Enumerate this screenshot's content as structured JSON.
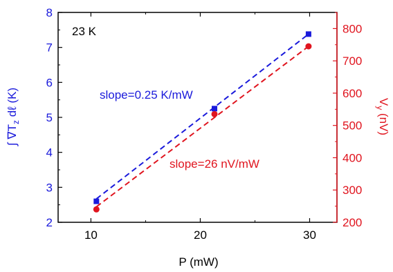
{
  "chart_data": {
    "type": "scatter",
    "annotation_temperature": "23 K",
    "x_axis": {
      "label": "P (mW)",
      "range": [
        7,
        32.5
      ],
      "ticks": [
        10,
        20,
        30
      ],
      "tick_labels": [
        "10",
        "20",
        "30"
      ]
    },
    "y_left_axis": {
      "label_prefix": "∫ ∇T",
      "label_sub": "z",
      "label_suffix": " dℓ (K)",
      "range": [
        2,
        8
      ],
      "ticks": [
        2,
        3,
        4,
        5,
        6,
        7,
        8
      ],
      "tick_labels": [
        "2",
        "3",
        "4",
        "5",
        "6",
        "7",
        "8"
      ],
      "color": "#1a1adb"
    },
    "y_right_axis": {
      "label_prefix": "V",
      "label_sub": "y",
      "label_suffix": " (nV)",
      "range": [
        200,
        850
      ],
      "ticks": [
        200,
        300,
        400,
        500,
        600,
        700,
        800
      ],
      "tick_labels": [
        "200",
        "300",
        "400",
        "500",
        "600",
        "700",
        "800"
      ],
      "color": "#e0141e"
    },
    "series": [
      {
        "axis": "left",
        "marker": "square",
        "color": "#1a1adb",
        "points": [
          [
            10.5,
            2.6
          ],
          [
            21.3,
            5.25
          ],
          [
            29.9,
            7.38
          ]
        ],
        "fit": {
          "from": [
            10.5,
            2.67
          ],
          "to": [
            29.9,
            7.38
          ],
          "style": "dashed"
        },
        "fit_label": "slope=0.25 K/mW"
      },
      {
        "axis": "right",
        "marker": "circle",
        "color": "#e0141e",
        "points": [
          [
            10.5,
            240
          ],
          [
            21.3,
            535
          ],
          [
            29.9,
            745
          ]
        ],
        "fit": {
          "from": [
            10.5,
            248
          ],
          "to": [
            29.9,
            745
          ],
          "style": "dashed"
        },
        "fit_label": "slope=26 nV/mW"
      }
    ]
  }
}
